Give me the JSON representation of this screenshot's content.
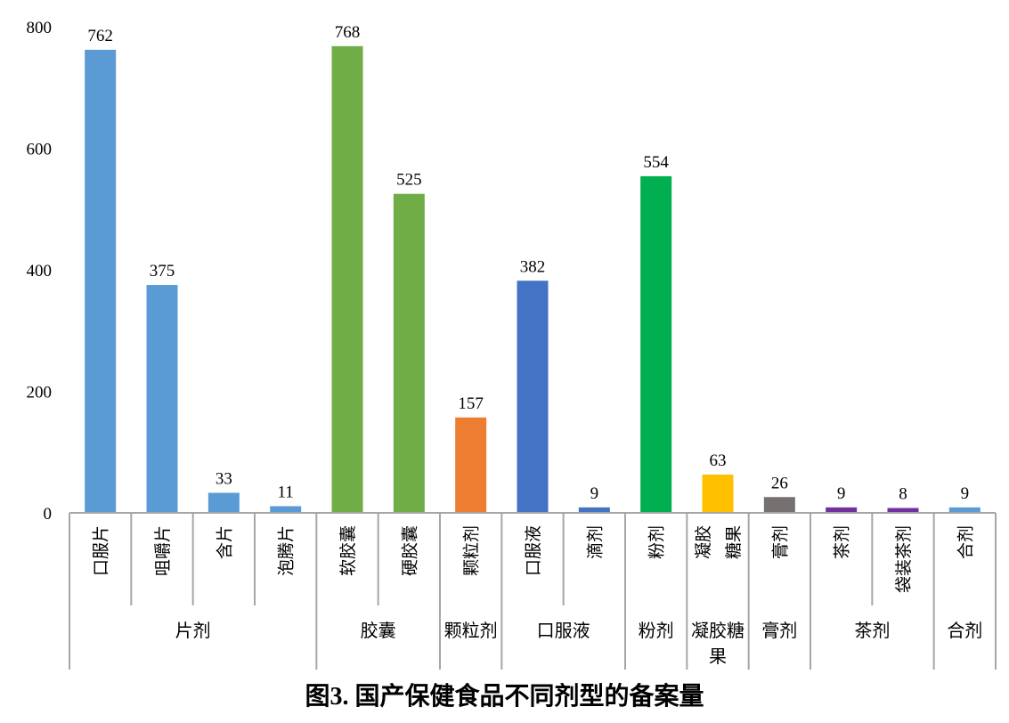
{
  "chart_data": {
    "type": "bar",
    "title": "图3. 国产保健食品不同剂型的备案量",
    "ylim": [
      0,
      800
    ],
    "yticks": [
      0,
      200,
      400,
      600,
      800
    ],
    "grid": false,
    "categories": [
      "口服片",
      "咀嚼片",
      "含片",
      "泡腾片",
      "软胶囊",
      "硬胶囊",
      "颗粒剂",
      "口服液",
      "滴剂",
      "粉剂",
      "凝胶糖果",
      "膏剂",
      "茶剂",
      "袋装茶剂",
      "合剂"
    ],
    "values": [
      762,
      375,
      33,
      11,
      768,
      525,
      157,
      382,
      9,
      554,
      63,
      26,
      9,
      8,
      9
    ],
    "groups": [
      {
        "label": "片剂",
        "count": 4,
        "color": "#5B9BD5"
      },
      {
        "label": "胶囊",
        "count": 2,
        "color": "#70AD47"
      },
      {
        "label": "颗粒剂",
        "count": 1,
        "color": "#ED7D31"
      },
      {
        "label": "口服液",
        "count": 2,
        "color": "#4472C4"
      },
      {
        "label": "粉剂",
        "count": 1,
        "color": "#00B050"
      },
      {
        "label": "凝胶糖果",
        "count": 1,
        "color": "#FFC000"
      },
      {
        "label": "膏剂",
        "count": 1,
        "color": "#767171"
      },
      {
        "label": "茶剂",
        "count": 2,
        "color": "#7030A0"
      },
      {
        "label": "合剂",
        "count": 1,
        "color": "#5B9BD5"
      }
    ]
  }
}
